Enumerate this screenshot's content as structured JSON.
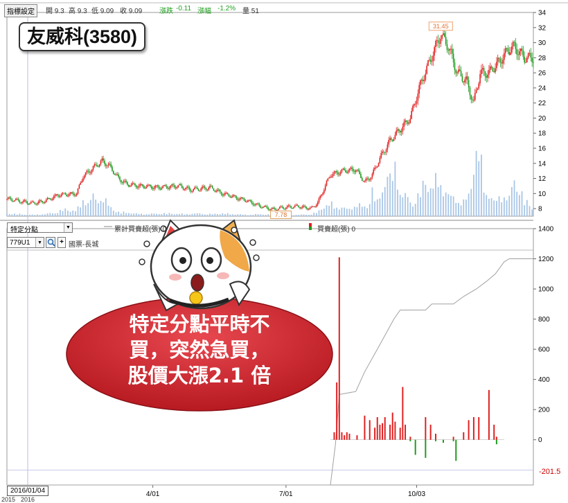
{
  "header": {
    "settings_button": "指標設定",
    "open": "開 9.3",
    "high": "高 9.3",
    "low": "低 9.09",
    "close": "收 9.09",
    "change_label": "漲跌",
    "change_value": "-0.11",
    "pct_label": "漲幅",
    "pct_value": "-1.2%",
    "volume": "量 51"
  },
  "stock_title": "友威科(3580)",
  "subpanel": {
    "dropdown_value": "特定分點",
    "broker_code": "779U1",
    "broker_name": "國票-長城",
    "legend_cumulative": "累計買賣超(張) 0",
    "legend_net": "買賣超(張) 0",
    "marker_value": "-201.5"
  },
  "annotation": {
    "lines": [
      "特定分點平時不",
      "買，突然急買，",
      "股價大漲2.1 倍"
    ]
  },
  "date_label": "2016/01/04",
  "bottom_year_labels": [
    "2015",
    "2016"
  ],
  "chart_data": [
    {
      "type": "candlestick",
      "ylim": [
        7,
        34
      ],
      "yticks": [
        8,
        10,
        12,
        14,
        16,
        18,
        20,
        22,
        24,
        26,
        28,
        30,
        32,
        34
      ],
      "x_ticks": [
        "4/01",
        "7/01",
        "10/03"
      ],
      "annotations": [
        {
          "label": "31.45",
          "note": "high"
        },
        {
          "label": "7.78",
          "note": "low"
        }
      ],
      "close_path": [
        [
          0,
          9.3
        ],
        [
          10,
          9.0
        ],
        [
          20,
          8.7
        ],
        [
          30,
          9.0
        ],
        [
          40,
          9.8
        ],
        [
          55,
          10.0
        ],
        [
          60,
          12.3
        ],
        [
          68,
          13.4
        ],
        [
          75,
          14.3
        ],
        [
          80,
          13.8
        ],
        [
          88,
          12.0
        ],
        [
          95,
          11.2
        ],
        [
          105,
          11.0
        ],
        [
          120,
          10.8
        ],
        [
          135,
          11.0
        ],
        [
          145,
          10.5
        ],
        [
          160,
          10.8
        ],
        [
          170,
          10.0
        ],
        [
          180,
          9.5
        ],
        [
          190,
          9.0
        ],
        [
          200,
          8.3
        ],
        [
          210,
          7.9
        ],
        [
          220,
          8.2
        ],
        [
          230,
          8.3
        ],
        [
          240,
          8.0
        ],
        [
          245,
          8.8
        ],
        [
          255,
          12.5
        ],
        [
          265,
          13.0
        ],
        [
          275,
          13.2
        ],
        [
          282,
          11.5
        ],
        [
          288,
          12.5
        ],
        [
          295,
          15.0
        ],
        [
          302,
          17.0
        ],
        [
          310,
          18.5
        ],
        [
          318,
          20.0
        ],
        [
          325,
          24.0
        ],
        [
          332,
          27.0
        ],
        [
          338,
          29.5
        ],
        [
          342,
          31.0
        ],
        [
          348,
          29.5
        ],
        [
          355,
          26.0
        ],
        [
          362,
          25.0
        ],
        [
          368,
          22.0
        ],
        [
          373,
          26.0
        ],
        [
          380,
          26.0
        ],
        [
          388,
          27.5
        ],
        [
          395,
          29.0
        ],
        [
          400,
          29.5
        ],
        [
          408,
          28.0
        ],
        [
          415,
          28.0
        ]
      ],
      "volume": {
        "bars": [
          [
            0,
            4
          ],
          [
            10,
            3
          ],
          [
            20,
            2
          ],
          [
            30,
            3
          ],
          [
            40,
            6
          ],
          [
            45,
            10
          ],
          [
            55,
            8
          ],
          [
            60,
            25
          ],
          [
            65,
            18
          ],
          [
            68,
            32
          ],
          [
            70,
            22
          ],
          [
            75,
            30
          ],
          [
            80,
            16
          ],
          [
            85,
            8
          ],
          [
            90,
            5
          ],
          [
            95,
            6
          ],
          [
            100,
            4
          ],
          [
            110,
            3
          ],
          [
            120,
            4
          ],
          [
            130,
            4
          ],
          [
            140,
            3
          ],
          [
            150,
            4
          ],
          [
            160,
            3
          ],
          [
            170,
            4
          ],
          [
            180,
            3
          ],
          [
            190,
            2
          ],
          [
            200,
            3
          ],
          [
            210,
            2
          ],
          [
            220,
            2
          ],
          [
            230,
            2
          ],
          [
            240,
            3
          ],
          [
            245,
            6
          ],
          [
            250,
            15
          ],
          [
            255,
            18
          ],
          [
            260,
            14
          ],
          [
            265,
            12
          ],
          [
            270,
            10
          ],
          [
            275,
            18
          ],
          [
            280,
            14
          ],
          [
            285,
            15
          ],
          [
            288,
            38
          ],
          [
            292,
            20
          ],
          [
            296,
            45
          ],
          [
            300,
            58
          ],
          [
            303,
            50
          ],
          [
            306,
            78
          ],
          [
            310,
            33
          ],
          [
            315,
            28
          ],
          [
            320,
            20
          ],
          [
            325,
            30
          ],
          [
            330,
            55
          ],
          [
            335,
            40
          ],
          [
            340,
            58
          ],
          [
            345,
            36
          ],
          [
            350,
            28
          ],
          [
            355,
            25
          ],
          [
            360,
            20
          ],
          [
            365,
            35
          ],
          [
            368,
            78
          ],
          [
            372,
            100
          ],
          [
            376,
            45
          ],
          [
            380,
            32
          ],
          [
            384,
            20
          ],
          [
            388,
            28
          ],
          [
            392,
            30
          ],
          [
            396,
            25
          ],
          [
            400,
            58
          ],
          [
            404,
            40
          ],
          [
            408,
            22
          ],
          [
            412,
            18
          ],
          [
            415,
            12
          ]
        ]
      }
    },
    {
      "type": "bar",
      "title": "買賣超(張)",
      "ylim": [
        -300,
        1400
      ],
      "yticks": [
        0,
        200,
        400,
        600,
        800,
        1000,
        1200,
        1400
      ],
      "net_buy": [
        [
          258,
          50
        ],
        [
          260,
          380
        ],
        [
          262,
          1210
        ],
        [
          264,
          50
        ],
        [
          266,
          30
        ],
        [
          268,
          50
        ],
        [
          270,
          40
        ],
        [
          276,
          30
        ],
        [
          282,
          160
        ],
        [
          286,
          130
        ],
        [
          290,
          80
        ],
        [
          292,
          150
        ],
        [
          294,
          100
        ],
        [
          296,
          110
        ],
        [
          298,
          150
        ],
        [
          302,
          100
        ],
        [
          304,
          180
        ],
        [
          306,
          120
        ],
        [
          310,
          80
        ],
        [
          312,
          350
        ],
        [
          314,
          100
        ],
        [
          318,
          20
        ],
        [
          330,
          150
        ],
        [
          334,
          100
        ],
        [
          338,
          40
        ],
        [
          352,
          20
        ],
        [
          360,
          50
        ],
        [
          364,
          130
        ],
        [
          368,
          150
        ],
        [
          372,
          150
        ],
        [
          380,
          330
        ],
        [
          384,
          100
        ],
        [
          386,
          20
        ]
      ],
      "net_sell": [
        [
          318,
          -10
        ],
        [
          322,
          -100
        ],
        [
          330,
          -120
        ],
        [
          338,
          -10
        ],
        [
          344,
          -20
        ],
        [
          352,
          -10
        ],
        [
          354,
          -140
        ],
        [
          386,
          -30
        ]
      ],
      "cumulative": [
        [
          0,
          -300
        ],
        [
          255,
          -300
        ],
        [
          259,
          -30
        ],
        [
          262,
          300
        ],
        [
          275,
          320
        ],
        [
          282,
          450
        ],
        [
          292,
          600
        ],
        [
          305,
          800
        ],
        [
          310,
          860
        ],
        [
          330,
          860
        ],
        [
          335,
          900
        ],
        [
          352,
          900
        ],
        [
          360,
          950
        ],
        [
          370,
          1000
        ],
        [
          378,
          1050
        ],
        [
          385,
          1100
        ],
        [
          392,
          1180
        ],
        [
          396,
          1200
        ],
        [
          415,
          1200
        ]
      ]
    }
  ]
}
